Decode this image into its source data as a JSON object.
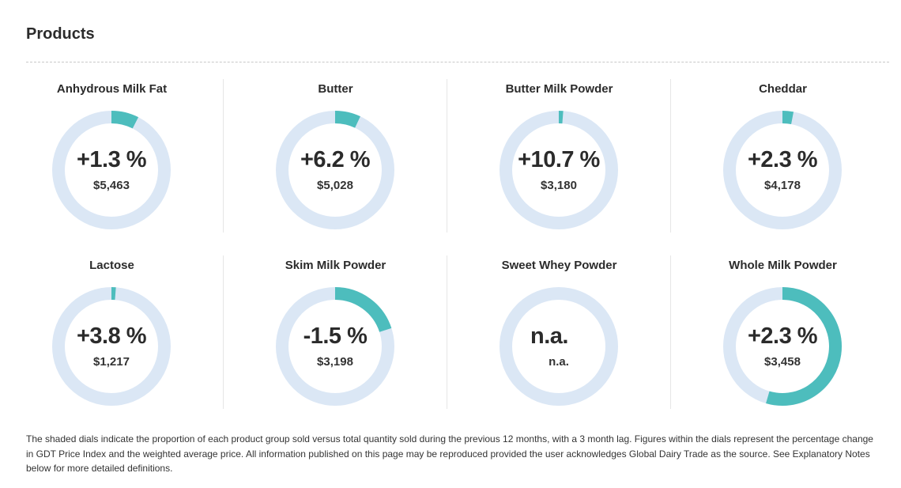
{
  "page": {
    "title": "Products",
    "footnote": "The shaded dials indicate the proportion of each product group sold versus total quantity sold during the previous 12 months, with a 3 month lag. Figures within the dials represent the percentage change in GDT Price Index and the weighted average price. All information published on this page may be reproduced provided the user acknowledges Global Dairy Trade as the source. See Explanatory Notes below for more detailed definitions."
  },
  "colors": {
    "dial_track": "#dbe7f5",
    "dial_fill": "#4dbdbd",
    "text": "#2b2b2b"
  },
  "products": [
    {
      "name": "Anhydrous Milk Fat",
      "change": "+1.3 %",
      "price": "$5,463",
      "share": 0.075
    },
    {
      "name": "Butter",
      "change": "+6.2 %",
      "price": "$5,028",
      "share": 0.07
    },
    {
      "name": "Butter Milk Powder",
      "change": "+10.7 %",
      "price": "$3,180",
      "share": 0.012
    },
    {
      "name": "Cheddar",
      "change": "+2.3 %",
      "price": "$4,178",
      "share": 0.03
    },
    {
      "name": "Lactose",
      "change": "+3.8 %",
      "price": "$1,217",
      "share": 0.012
    },
    {
      "name": "Skim Milk Powder",
      "change": "-1.5 %",
      "price": "$3,198",
      "share": 0.2
    },
    {
      "name": "Sweet Whey Powder",
      "change": "n.a.",
      "price": "n.a.",
      "share": 0
    },
    {
      "name": "Whole Milk Powder",
      "change": "+2.3 %",
      "price": "$3,458",
      "share": 0.545
    }
  ]
}
